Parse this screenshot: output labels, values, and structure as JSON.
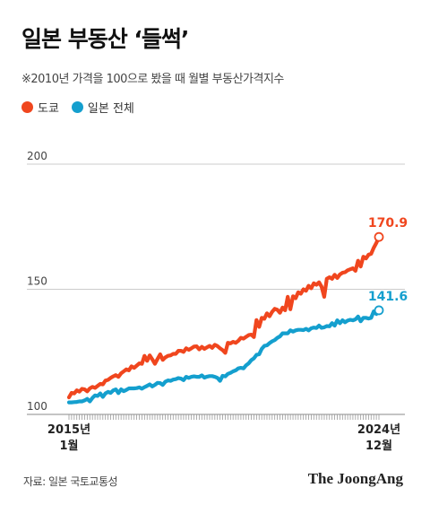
{
  "title": "일본 부동산 ‘들썩’",
  "subtitle": "※2010년 가격을 100으로 봤을 때 월별 부동산가격지수",
  "source": "자료: 일본 국토교통성",
  "logo": "The JoongAng",
  "colors": {
    "tokyo": "#F0461E",
    "japan": "#149FCE",
    "grid": "#cccccc",
    "axis": "#888888"
  },
  "chart_data": {
    "type": "line",
    "ylim": [
      100,
      200
    ],
    "yticks": [
      200,
      150,
      100
    ],
    "x_start_label": [
      "2015년",
      "1월"
    ],
    "x_end_label": [
      "2024년",
      "12월"
    ],
    "n_points": 120,
    "series": [
      {
        "name": "도쿄",
        "color_key": "tokyo",
        "end_label": "170.9",
        "values": [
          106.8,
          108.6,
          108.4,
          109.6,
          109.1,
          110.2,
          110.0,
          109.2,
          110.4,
          111.0,
          110.6,
          111.4,
          112.2,
          112.0,
          113.5,
          113.8,
          114.6,
          115.2,
          115.7,
          115.0,
          116.4,
          117.2,
          118.0,
          117.6,
          119.2,
          118.6,
          119.5,
          120.4,
          120.2,
          123.4,
          121.4,
          123.6,
          122.0,
          120.2,
          122.2,
          124.0,
          121.8,
          122.8,
          123.4,
          123.6,
          124.2,
          124.2,
          125.4,
          125.4,
          125.0,
          126.4,
          125.8,
          126.4,
          127.1,
          127.2,
          126.0,
          127.0,
          126.2,
          126.8,
          127.4,
          126.6,
          127.8,
          127.3,
          126.4,
          125.7,
          124.6,
          128.6,
          128.4,
          129.0,
          128.6,
          129.4,
          130.6,
          130.3,
          131.0,
          131.7,
          131.9,
          130.9,
          137.7,
          135.0,
          138.6,
          138.2,
          140.4,
          139.2,
          141.0,
          142.2,
          141.8,
          140.6,
          142.7,
          141.6,
          147.0,
          142.0,
          147.2,
          146.4,
          148.8,
          148.2,
          150.0,
          149.4,
          151.4,
          150.4,
          152.4,
          151.8,
          152.8,
          151.0,
          147.0,
          154.2,
          154.8,
          154.2,
          155.8,
          154.5,
          155.9,
          156.6,
          156.8,
          157.6,
          158.0,
          158.4,
          157.4,
          161.4,
          159.1,
          163.0,
          162.3,
          163.8,
          164.2,
          166.6,
          168.5,
          170.9
        ]
      },
      {
        "name": "일본 전체",
        "color_key": "japan",
        "end_label": "141.6",
        "values": [
          104.8,
          104.8,
          104.9,
          105.0,
          105.2,
          105.2,
          105.6,
          106.2,
          105.2,
          106.6,
          107.6,
          107.4,
          108.4,
          107.0,
          108.4,
          109.0,
          108.6,
          109.6,
          110.0,
          108.5,
          110.0,
          109.3,
          109.8,
          110.4,
          110.4,
          110.4,
          110.5,
          110.8,
          110.3,
          110.9,
          111.4,
          112.0,
          111.2,
          111.8,
          112.6,
          112.5,
          111.8,
          113.1,
          113.6,
          113.4,
          113.9,
          114.1,
          114.5,
          114.3,
          113.7,
          115.0,
          114.6,
          115.0,
          115.2,
          115.0,
          115.0,
          115.6,
          114.7,
          115.1,
          115.3,
          115.3,
          115.0,
          114.6,
          113.4,
          115.4,
          115.2,
          116.2,
          116.6,
          117.2,
          117.6,
          118.4,
          118.6,
          118.4,
          119.6,
          120.4,
          121.7,
          122.4,
          123.8,
          124.0,
          126.2,
          127.4,
          127.6,
          128.5,
          129.2,
          129.7,
          130.6,
          131.2,
          132.4,
          132.4,
          132.4,
          133.6,
          133.1,
          133.6,
          133.8,
          133.8,
          133.7,
          134.2,
          133.6,
          134.4,
          134.7,
          134.5,
          135.5,
          134.6,
          134.8,
          135.3,
          135.2,
          136.5,
          135.5,
          137.6,
          136.4,
          137.6,
          136.8,
          137.5,
          137.8,
          137.6,
          138.0,
          139.1,
          137.2,
          138.6,
          138.6,
          138.3,
          138.6,
          141.2,
          140.1,
          141.6
        ]
      }
    ]
  }
}
